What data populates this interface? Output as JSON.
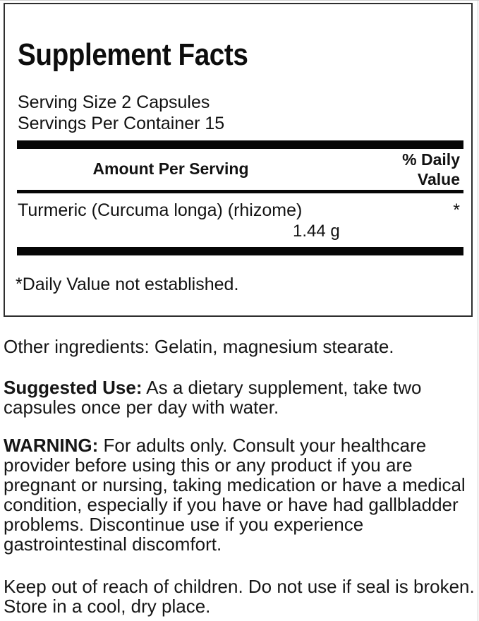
{
  "panel": {
    "title": "Supplement Facts",
    "serving_size": "Serving Size 2 Capsules",
    "servings_per_container": "Servings Per Container 15",
    "header": {
      "amount_per_serving": "Amount Per Serving",
      "daily_value_line1": "% Daily",
      "daily_value_line2": "Value"
    },
    "rows": [
      {
        "name": "Turmeric (Curcuma longa) (rhizome)",
        "amount": "1.44 g",
        "daily_value": "*"
      }
    ],
    "footnote": "*Daily Value not established."
  },
  "info": {
    "paragraphs": [
      {
        "label": "",
        "text": "Other ingredients: Gelatin, magnesium stearate."
      },
      {
        "label": "Suggested Use:",
        "text": " As a dietary supplement, take two\ncapsules once per day with water."
      },
      {
        "label": "WARNING:",
        "text": " For adults only. Consult your healthcare\nprovider before using this or any product if you are\npregnant or nursing, taking medication or have a medical\ncondition, especially if you have or have had gallbladder\nproblems. Discontinue use if you experience\ngastrointestinal discomfort."
      },
      {
        "label": "",
        "text": "Keep out of reach of children. Do not use if seal is broken.\nStore in a cool, dry place."
      }
    ]
  },
  "colors": {
    "text": "#121212",
    "bar": "#060606",
    "panel_border": "#2e2e2e",
    "background": "#ffffff"
  }
}
